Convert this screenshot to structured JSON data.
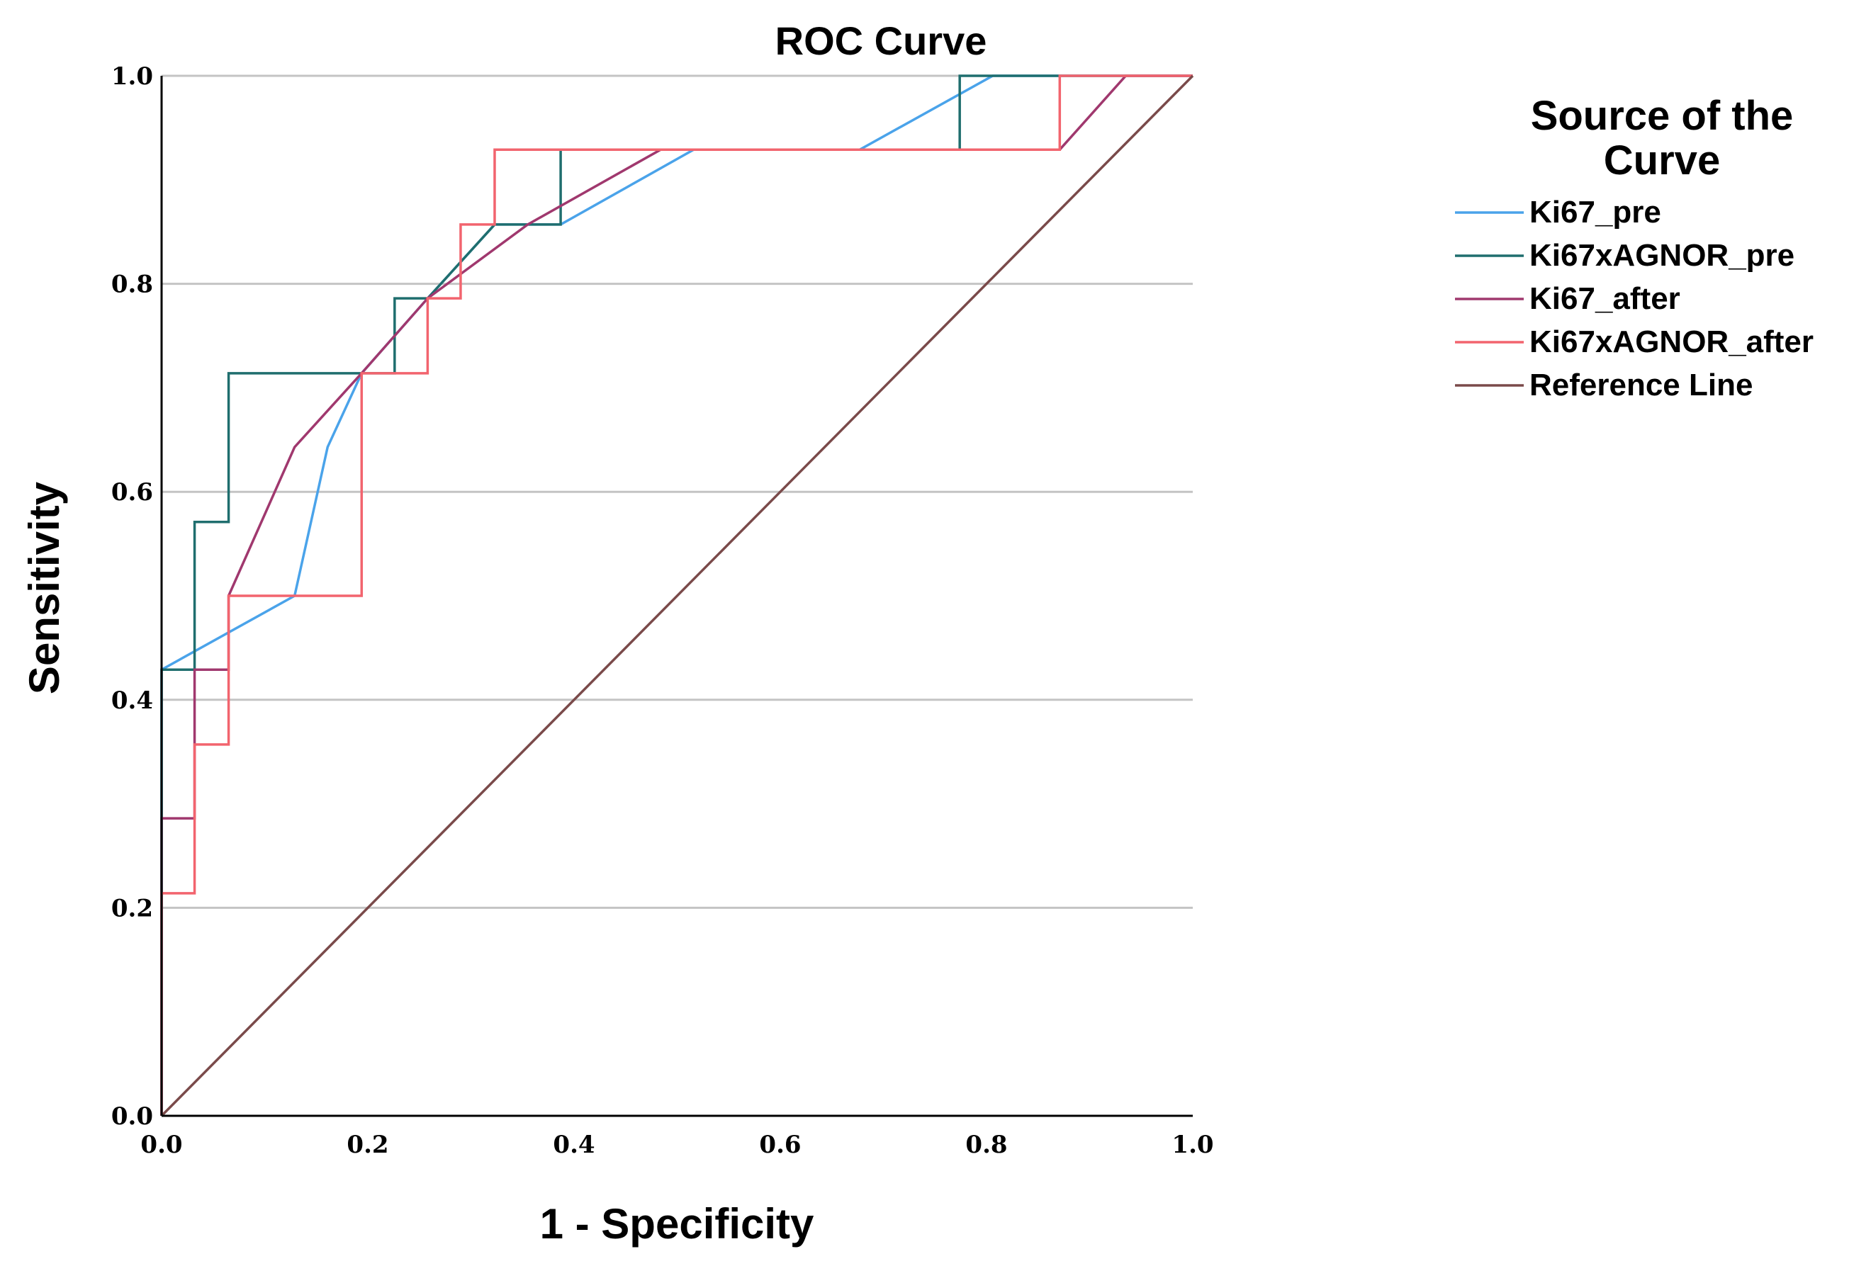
{
  "chart_data": {
    "type": "line",
    "title": "ROC Curve",
    "xlabel": "1 - Specificity",
    "ylabel": "Sensitivity",
    "xlim": [
      0,
      1
    ],
    "ylim": [
      0,
      1
    ],
    "x_ticks": [
      "0.0",
      "0.2",
      "0.4",
      "0.6",
      "0.8",
      "1.0"
    ],
    "y_ticks": [
      "0.0",
      "0.2",
      "0.4",
      "0.6",
      "0.8",
      "1.0"
    ],
    "grid": "horizontal",
    "legend_title": "Source of the Curve",
    "legend_position": "right",
    "series": [
      {
        "name": "Ki67_pre",
        "color": "#4aa3ea",
        "x": [
          0,
          0,
          0.129,
          0.161,
          0.194,
          0.258,
          0.323,
          0.387,
          0.516,
          0.677,
          0.806,
          1.0
        ],
        "y": [
          0,
          0.429,
          0.5,
          0.643,
          0.714,
          0.786,
          0.857,
          0.857,
          0.929,
          0.929,
          1.0,
          1.0
        ]
      },
      {
        "name": "Ki67xAGNOR_pre",
        "color": "#1f6e6e",
        "x": [
          0,
          0,
          0.032,
          0.032,
          0.065,
          0.065,
          0.226,
          0.226,
          0.258,
          0.323,
          0.387,
          0.387,
          0.774,
          0.774,
          1.0
        ],
        "y": [
          0,
          0.429,
          0.429,
          0.571,
          0.571,
          0.714,
          0.714,
          0.786,
          0.786,
          0.857,
          0.857,
          0.929,
          0.929,
          1.0,
          1.0
        ]
      },
      {
        "name": "Ki67_after",
        "color": "#a0386e",
        "x": [
          0,
          0,
          0.032,
          0.032,
          0.065,
          0.065,
          0.129,
          0.194,
          0.258,
          0.355,
          0.484,
          0.871,
          0.935,
          1.0
        ],
        "y": [
          0,
          0.286,
          0.286,
          0.429,
          0.429,
          0.5,
          0.643,
          0.714,
          0.786,
          0.857,
          0.929,
          0.929,
          1.0,
          1.0
        ]
      },
      {
        "name": "Ki67xAGNOR_after",
        "color": "#f2646e",
        "x": [
          0,
          0,
          0.032,
          0.032,
          0.065,
          0.065,
          0.194,
          0.194,
          0.258,
          0.258,
          0.29,
          0.29,
          0.323,
          0.323,
          0.871,
          0.871,
          1.0
        ],
        "y": [
          0,
          0.214,
          0.214,
          0.357,
          0.357,
          0.5,
          0.5,
          0.714,
          0.714,
          0.786,
          0.786,
          0.857,
          0.857,
          0.929,
          0.929,
          1.0,
          1.0
        ]
      },
      {
        "name": "Reference Line",
        "color": "#7a4a4a",
        "x": [
          0,
          1
        ],
        "y": [
          0,
          1
        ]
      }
    ]
  }
}
